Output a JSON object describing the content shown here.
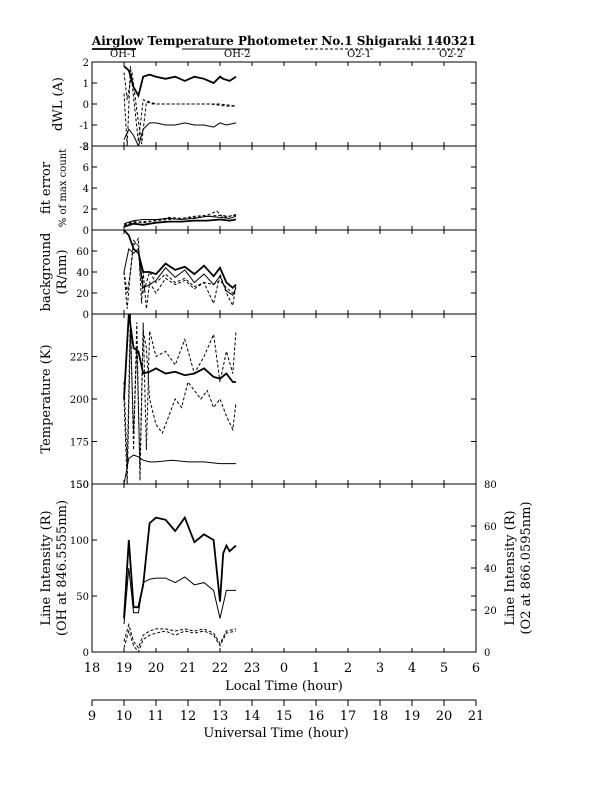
{
  "title": "Airglow Temperature Photometer No.1   Shigaraki   140321",
  "legend": [
    {
      "name": "OH-1",
      "dash": "solid",
      "width": 1.8
    },
    {
      "name": "OH-2",
      "dash": "solid",
      "width": 1.0
    },
    {
      "name": "O2-1",
      "dash": "dashed",
      "width": 1.0
    },
    {
      "name": "O2-2",
      "dash": "dashed",
      "width": 1.0
    }
  ],
  "xaxis_local": {
    "label": "Local Time (hour)",
    "min": 18,
    "max": 30,
    "tick_labels": [
      "18",
      "19",
      "20",
      "21",
      "22",
      "23",
      "0",
      "1",
      "2",
      "3",
      "4",
      "5",
      "6"
    ]
  },
  "xaxis_ut": {
    "label": "Universal Time (hour)",
    "min": 9,
    "max": 21,
    "tick_labels": [
      "9",
      "10",
      "11",
      "12",
      "13",
      "14",
      "15",
      "16",
      "17",
      "18",
      "19",
      "20",
      "21"
    ]
  },
  "chart_data": [
    {
      "type": "line",
      "ylabel": "dWL (A)",
      "ylim": [
        -2,
        2
      ],
      "ytick_labels": [
        "-2",
        "-1",
        "0",
        "1",
        "2"
      ],
      "series": [
        {
          "name": "OH-1",
          "x": [
            19.0,
            19.15,
            19.3,
            19.45,
            19.6,
            19.8,
            20.0,
            20.3,
            20.6,
            20.9,
            21.2,
            21.5,
            21.8,
            22.0,
            22.1,
            22.3,
            22.5
          ],
          "values": [
            1.8,
            1.6,
            0.8,
            0.4,
            1.3,
            1.4,
            1.3,
            1.2,
            1.3,
            1.1,
            1.3,
            1.2,
            1.0,
            1.3,
            1.2,
            1.1,
            1.3
          ]
        },
        {
          "name": "OH-2",
          "x": [
            19.0,
            19.15,
            19.3,
            19.45,
            19.6,
            19.8,
            20.0,
            20.3,
            20.6,
            20.9,
            21.2,
            21.5,
            21.8,
            22.0,
            22.2,
            22.5
          ],
          "values": [
            -1.7,
            -1.2,
            -1.5,
            -2.0,
            -1.2,
            -0.9,
            -0.9,
            -1.0,
            -1.0,
            -0.9,
            -1.0,
            -1.0,
            -1.1,
            -0.9,
            -1.0,
            -0.9
          ]
        },
        {
          "name": "O2-1",
          "x": [
            19.0,
            19.1,
            19.2,
            19.3,
            19.45,
            19.6,
            19.8,
            20.0,
            20.5,
            21.0,
            21.5,
            22.0,
            22.5
          ],
          "values": [
            0.5,
            -2.0,
            1.8,
            0.3,
            -1.8,
            0.2,
            0.1,
            0.0,
            0.0,
            0.0,
            0.0,
            0.0,
            -0.1
          ]
        },
        {
          "name": "O2-2",
          "x": [
            19.0,
            19.1,
            19.25,
            19.4,
            19.55,
            19.7,
            19.9,
            20.2,
            20.7,
            21.2,
            21.7,
            22.2,
            22.5
          ],
          "values": [
            1.5,
            0.2,
            1.5,
            -0.3,
            -1.9,
            0.1,
            0.0,
            0.0,
            0.0,
            0.0,
            0.0,
            -0.1,
            -0.1
          ]
        }
      ]
    },
    {
      "type": "line",
      "ylabel": "fit error",
      "ylabel2": "% of max count",
      "ylim": [
        0,
        8
      ],
      "ytick_labels": [
        "0",
        "2",
        "4",
        "6",
        "8"
      ],
      "series": [
        {
          "name": "OH-1",
          "x": [
            19.0,
            19.3,
            19.6,
            20.0,
            20.4,
            20.8,
            21.2,
            21.6,
            22.0,
            22.3,
            22.5
          ],
          "values": [
            0.3,
            0.6,
            0.5,
            0.7,
            0.8,
            0.8,
            0.9,
            0.9,
            1.0,
            0.9,
            1.0
          ]
        },
        {
          "name": "OH-2",
          "x": [
            19.0,
            19.3,
            19.6,
            20.0,
            20.4,
            20.8,
            21.2,
            21.6,
            22.0,
            22.3,
            22.5
          ],
          "values": [
            0.6,
            0.9,
            1.0,
            1.0,
            1.1,
            1.0,
            1.1,
            1.3,
            1.2,
            1.1,
            1.3
          ]
        },
        {
          "name": "O2-1",
          "x": [
            19.0,
            19.3,
            19.6,
            20.0,
            20.4,
            20.8,
            21.2,
            21.6,
            21.9,
            22.1,
            22.3,
            22.5
          ],
          "values": [
            0.5,
            0.8,
            0.7,
            0.9,
            1.2,
            1.1,
            1.3,
            1.4,
            1.8,
            1.2,
            1.3,
            1.5
          ]
        },
        {
          "name": "O2-2",
          "x": [
            19.0,
            19.3,
            19.6,
            20.0,
            20.4,
            20.8,
            21.2,
            21.6,
            22.0,
            22.3,
            22.5
          ],
          "values": [
            0.4,
            0.7,
            0.8,
            0.9,
            1.0,
            1.1,
            1.2,
            1.3,
            1.4,
            1.3,
            1.4
          ]
        }
      ]
    },
    {
      "type": "line",
      "ylabel": "background",
      "ylabel2": "(R/nm)",
      "ylim": [
        0,
        80
      ],
      "ytick_labels": [
        "0",
        "20",
        "40",
        "60"
      ],
      "series": [
        {
          "name": "OH-1",
          "x": [
            19.0,
            19.15,
            19.3,
            19.45,
            19.6,
            19.8,
            20.0,
            20.3,
            20.6,
            20.9,
            21.2,
            21.5,
            21.8,
            22.0,
            22.2,
            22.4,
            22.5
          ],
          "values": [
            80,
            75,
            62,
            58,
            40,
            40,
            38,
            48,
            42,
            45,
            38,
            46,
            36,
            44,
            30,
            25,
            28
          ]
        },
        {
          "name": "OH-2",
          "x": [
            19.0,
            19.15,
            19.3,
            19.45,
            19.6,
            19.8,
            20.0,
            20.3,
            20.6,
            20.9,
            21.2,
            21.5,
            21.8,
            22.0,
            22.2,
            22.4,
            22.5
          ],
          "values": [
            40,
            62,
            58,
            62,
            25,
            28,
            32,
            44,
            35,
            42,
            30,
            38,
            28,
            36,
            22,
            18,
            25
          ]
        },
        {
          "name": "O2-1",
          "x": [
            19.0,
            19.1,
            19.2,
            19.3,
            19.45,
            19.5,
            19.6,
            19.8,
            20.0,
            20.3,
            20.6,
            20.9,
            21.2,
            21.5,
            21.8,
            22.0,
            22.2,
            22.4,
            22.5
          ],
          "values": [
            40,
            20,
            40,
            65,
            72,
            42,
            20,
            40,
            30,
            38,
            30,
            34,
            26,
            30,
            28,
            32,
            25,
            20,
            20
          ]
        },
        {
          "name": "O2-2",
          "x": [
            19.0,
            19.1,
            19.2,
            19.3,
            19.45,
            19.55,
            19.6,
            19.7,
            19.8,
            20.0,
            20.3,
            20.6,
            20.9,
            21.2,
            21.5,
            21.8,
            22.0,
            22.2,
            22.4,
            22.5
          ],
          "values": [
            40,
            5,
            40,
            70,
            65,
            10,
            40,
            5,
            30,
            20,
            34,
            28,
            32,
            24,
            30,
            10,
            38,
            20,
            8,
            28
          ]
        }
      ]
    },
    {
      "type": "line",
      "ylabel": "Temperature (K)",
      "ylim": [
        150,
        250
      ],
      "ytick_labels": [
        "150",
        "175",
        "200",
        "225"
      ],
      "series": [
        {
          "name": "OH-1",
          "x": [
            19.0,
            19.15,
            19.3,
            19.45,
            19.6,
            19.8,
            20.0,
            20.3,
            20.6,
            20.9,
            21.2,
            21.5,
            21.8,
            22.0,
            22.2,
            22.4,
            22.5
          ],
          "values": [
            200,
            250,
            230,
            228,
            215,
            216,
            218,
            215,
            216,
            214,
            215,
            218,
            213,
            212,
            215,
            210,
            210
          ]
        },
        {
          "name": "OH-2",
          "x": [
            19.0,
            19.15,
            19.3,
            19.45,
            19.6,
            19.8,
            20.0,
            20.5,
            21.0,
            21.5,
            22.0,
            22.5
          ],
          "values": [
            150,
            165,
            167,
            166,
            164,
            163,
            163,
            164,
            163,
            163,
            162,
            162
          ]
        },
        {
          "name": "O2-1",
          "x": [
            19.0,
            19.1,
            19.2,
            19.3,
            19.4,
            19.5,
            19.6,
            19.7,
            19.8,
            20.0,
            20.2,
            20.4,
            20.6,
            20.8,
            21.0,
            21.2,
            21.4,
            21.6,
            21.8,
            22.0,
            22.2,
            22.4,
            22.5
          ],
          "values": [
            200,
            150,
            240,
            180,
            230,
            160,
            240,
            230,
            200,
            185,
            180,
            190,
            200,
            195,
            210,
            205,
            200,
            205,
            195,
            200,
            190,
            182,
            198
          ]
        },
        {
          "name": "O2-2",
          "x": [
            19.0,
            19.1,
            19.2,
            19.3,
            19.4,
            19.5,
            19.6,
            19.7,
            19.8,
            20.0,
            20.3,
            20.6,
            20.9,
            21.2,
            21.5,
            21.8,
            22.0,
            22.2,
            22.4,
            22.5
          ],
          "values": [
            210,
            160,
            250,
            170,
            245,
            152,
            245,
            170,
            240,
            225,
            228,
            220,
            235,
            215,
            225,
            238,
            210,
            228,
            215,
            240
          ]
        }
      ]
    },
    {
      "type": "line",
      "ylabel": "Line Intensity (R)",
      "ylabel2": "(OH at 846.5555nm)",
      "ylabel_right": "Line Intensity (R)",
      "ylabel_right2": "(O2 at 866.0595nm)",
      "ylim": [
        0,
        150
      ],
      "ytick_labels": [
        "0",
        "50",
        "100",
        "150"
      ],
      "ylim_right": [
        0,
        80
      ],
      "ytick_labels_right": [
        "0",
        "20",
        "40",
        "60",
        "80"
      ],
      "series": [
        {
          "name": "OH-1",
          "axis": "left",
          "x": [
            19.0,
            19.15,
            19.3,
            19.45,
            19.6,
            19.8,
            20.0,
            20.3,
            20.6,
            20.9,
            21.2,
            21.5,
            21.8,
            22.0,
            22.1,
            22.2,
            22.3,
            22.5
          ],
          "values": [
            30,
            100,
            40,
            40,
            60,
            115,
            120,
            118,
            108,
            120,
            98,
            105,
            100,
            45,
            88,
            95,
            90,
            95
          ]
        },
        {
          "name": "OH-2",
          "axis": "left",
          "x": [
            19.0,
            19.15,
            19.3,
            19.45,
            19.6,
            19.8,
            20.0,
            20.3,
            20.6,
            20.9,
            21.2,
            21.5,
            21.8,
            22.0,
            22.2,
            22.5
          ],
          "values": [
            25,
            75,
            35,
            35,
            62,
            65,
            66,
            66,
            62,
            67,
            60,
            62,
            55,
            30,
            55,
            55
          ]
        },
        {
          "name": "O2-1",
          "axis": "right",
          "x": [
            19.0,
            19.15,
            19.3,
            19.45,
            19.6,
            19.8,
            20.0,
            20.3,
            20.6,
            20.9,
            21.2,
            21.5,
            21.8,
            22.0,
            22.2,
            22.5
          ],
          "values": [
            2,
            10,
            3,
            0,
            6,
            8,
            9,
            10,
            8,
            10,
            9,
            10,
            8,
            3,
            9,
            10
          ]
        },
        {
          "name": "O2-2",
          "axis": "right",
          "x": [
            19.0,
            19.15,
            19.3,
            19.45,
            19.6,
            19.8,
            20.0,
            20.3,
            20.6,
            20.9,
            21.2,
            21.5,
            21.8,
            22.0,
            22.2,
            22.5
          ],
          "values": [
            5,
            13,
            5,
            2,
            8,
            10,
            11,
            11,
            10,
            11,
            10,
            11,
            9,
            4,
            10,
            11
          ]
        }
      ]
    }
  ]
}
